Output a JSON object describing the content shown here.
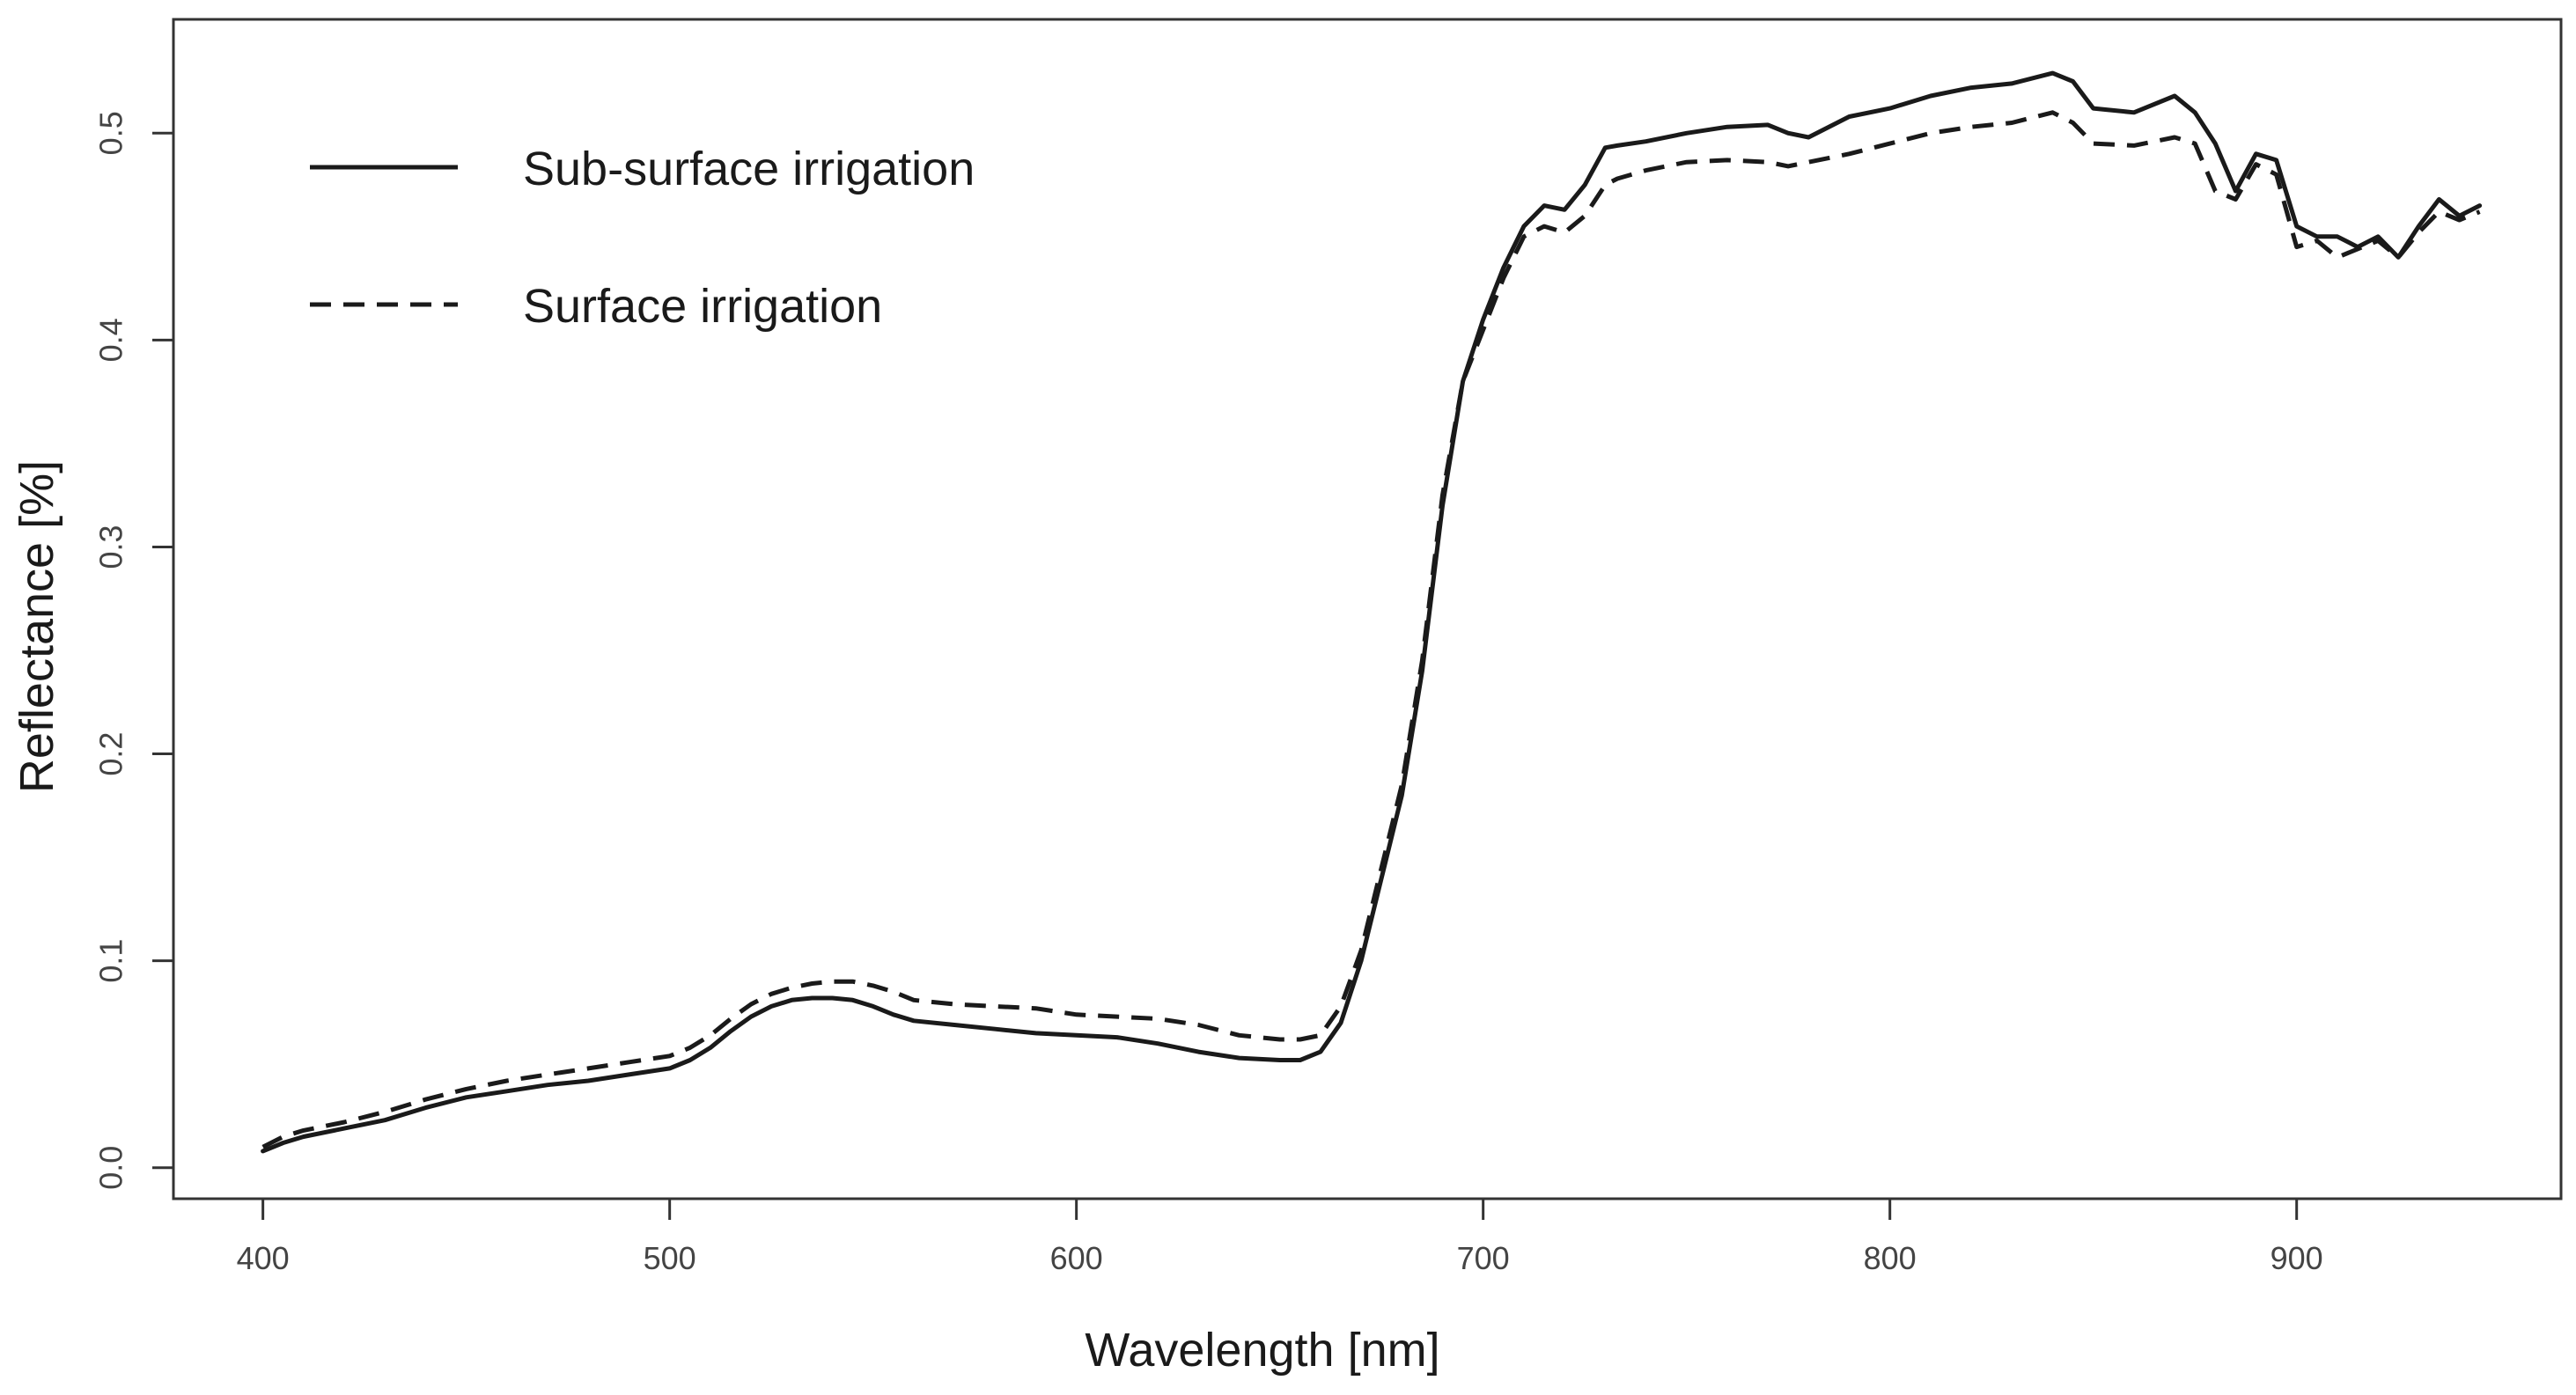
{
  "chart_data": {
    "type": "line",
    "title": "",
    "xlabel": "Wavelength [nm]",
    "ylabel": "Reflectance [%]",
    "xlim": [
      378,
      965
    ],
    "ylim": [
      -0.015,
      0.555
    ],
    "xticks": [
      400,
      500,
      600,
      700,
      800,
      900
    ],
    "yticks": [
      0.0,
      0.1,
      0.2,
      0.3,
      0.4,
      0.5
    ],
    "xtick_labels": [
      "400",
      "500",
      "600",
      "700",
      "800",
      "900"
    ],
    "ytick_labels": [
      "0.0",
      "0.1",
      "0.2",
      "0.3",
      "0.4",
      "0.5"
    ],
    "grid": false,
    "legend_position": "top-left",
    "series": [
      {
        "name": "Sub-surface irrigation",
        "style": "solid",
        "color": "#1a1a1a",
        "x": [
          400,
          405,
          410,
          420,
          430,
          440,
          450,
          460,
          470,
          480,
          490,
          500,
          505,
          510,
          515,
          520,
          525,
          530,
          535,
          540,
          545,
          550,
          555,
          560,
          570,
          580,
          590,
          600,
          610,
          620,
          630,
          640,
          650,
          655,
          660,
          665,
          670,
          675,
          680,
          685,
          690,
          695,
          700,
          705,
          710,
          715,
          720,
          725,
          730,
          733,
          740,
          750,
          760,
          770,
          775,
          780,
          790,
          800,
          810,
          820,
          830,
          840,
          845,
          850,
          860,
          870,
          875,
          880,
          885,
          890,
          895,
          900,
          905,
          910,
          915,
          920,
          925,
          930,
          935,
          940,
          945
        ],
        "y": [
          0.008,
          0.012,
          0.015,
          0.019,
          0.023,
          0.029,
          0.034,
          0.037,
          0.04,
          0.042,
          0.045,
          0.048,
          0.052,
          0.058,
          0.066,
          0.073,
          0.078,
          0.081,
          0.082,
          0.082,
          0.081,
          0.078,
          0.074,
          0.071,
          0.069,
          0.067,
          0.065,
          0.064,
          0.063,
          0.06,
          0.056,
          0.053,
          0.052,
          0.052,
          0.056,
          0.07,
          0.1,
          0.14,
          0.18,
          0.24,
          0.32,
          0.38,
          0.41,
          0.435,
          0.455,
          0.465,
          0.463,
          0.475,
          0.493,
          0.494,
          0.496,
          0.5,
          0.503,
          0.504,
          0.5,
          0.498,
          0.508,
          0.512,
          0.518,
          0.522,
          0.524,
          0.529,
          0.525,
          0.512,
          0.51,
          0.518,
          0.51,
          0.495,
          0.472,
          0.49,
          0.487,
          0.455,
          0.45,
          0.45,
          0.445,
          0.45,
          0.44,
          0.455,
          0.468,
          0.46,
          0.465
        ]
      },
      {
        "name": "Surface irrigation",
        "style": "dashed",
        "color": "#1a1a1a",
        "x": [
          400,
          405,
          410,
          420,
          430,
          440,
          450,
          460,
          470,
          480,
          490,
          500,
          505,
          510,
          515,
          520,
          525,
          530,
          535,
          540,
          545,
          550,
          555,
          560,
          570,
          580,
          590,
          600,
          610,
          620,
          630,
          640,
          650,
          655,
          660,
          665,
          670,
          675,
          680,
          685,
          690,
          695,
          700,
          705,
          710,
          715,
          720,
          725,
          730,
          733,
          740,
          750,
          760,
          770,
          775,
          780,
          790,
          800,
          810,
          820,
          830,
          840,
          845,
          850,
          860,
          870,
          875,
          880,
          885,
          890,
          895,
          900,
          905,
          910,
          915,
          920,
          925,
          930,
          935,
          940,
          945
        ],
        "y": [
          0.01,
          0.015,
          0.018,
          0.022,
          0.027,
          0.033,
          0.038,
          0.042,
          0.045,
          0.048,
          0.051,
          0.054,
          0.058,
          0.064,
          0.072,
          0.079,
          0.084,
          0.087,
          0.089,
          0.09,
          0.09,
          0.088,
          0.085,
          0.081,
          0.079,
          0.078,
          0.077,
          0.074,
          0.073,
          0.072,
          0.069,
          0.064,
          0.062,
          0.062,
          0.064,
          0.078,
          0.105,
          0.145,
          0.185,
          0.245,
          0.325,
          0.38,
          0.405,
          0.43,
          0.45,
          0.455,
          0.452,
          0.46,
          0.475,
          0.478,
          0.482,
          0.486,
          0.487,
          0.486,
          0.484,
          0.486,
          0.49,
          0.495,
          0.5,
          0.503,
          0.505,
          0.51,
          0.505,
          0.495,
          0.494,
          0.498,
          0.495,
          0.472,
          0.468,
          0.485,
          0.48,
          0.445,
          0.448,
          0.44,
          0.444,
          0.448,
          0.44,
          0.452,
          0.462,
          0.458,
          0.462
        ]
      }
    ]
  }
}
